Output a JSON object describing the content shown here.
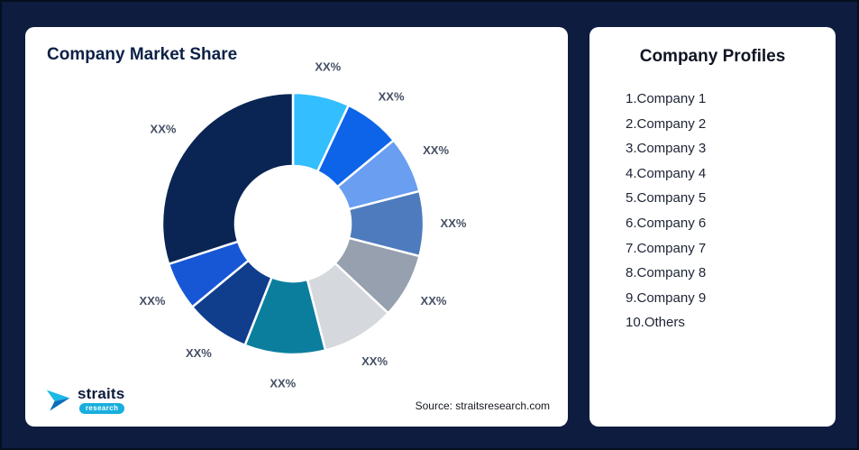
{
  "page": {
    "background": "#0d1c3f"
  },
  "left_card": {
    "title": "Company Market Share",
    "source": "Source: straitsresearch.com"
  },
  "logo": {
    "brand": "straits",
    "sub": "research"
  },
  "right_card": {
    "title": "Company Profiles",
    "items": [
      "1.Company 1",
      "2.Company 2",
      "3.Company 3",
      "4.Company 4",
      "5.Company 5",
      "6.Company 6",
      "7.Company 7",
      "8.Company 8",
      "9.Company 9",
      "10.Others"
    ]
  },
  "chart_data": {
    "type": "pie",
    "subtype": "donut",
    "title": "Company Market Share",
    "labels": [
      "XX%",
      "XX%",
      "XX%",
      "XX%",
      "XX%",
      "XX%",
      "XX%",
      "XX%",
      "XX%",
      "XX%"
    ],
    "values": [
      7,
      7,
      7,
      8,
      8,
      9,
      10,
      8,
      6,
      30
    ],
    "colors": [
      "#33beff",
      "#0d64e8",
      "#699ef0",
      "#4e7bbd",
      "#96a0ae",
      "#d5d8dd",
      "#0b7e9e",
      "#103e8c",
      "#1757d6",
      "#0a2553"
    ],
    "start_angle_deg": -90,
    "direction": "clockwise",
    "inner_radius_ratio": 0.44,
    "legend": "none",
    "source": "Source: straitsresearch.com"
  }
}
